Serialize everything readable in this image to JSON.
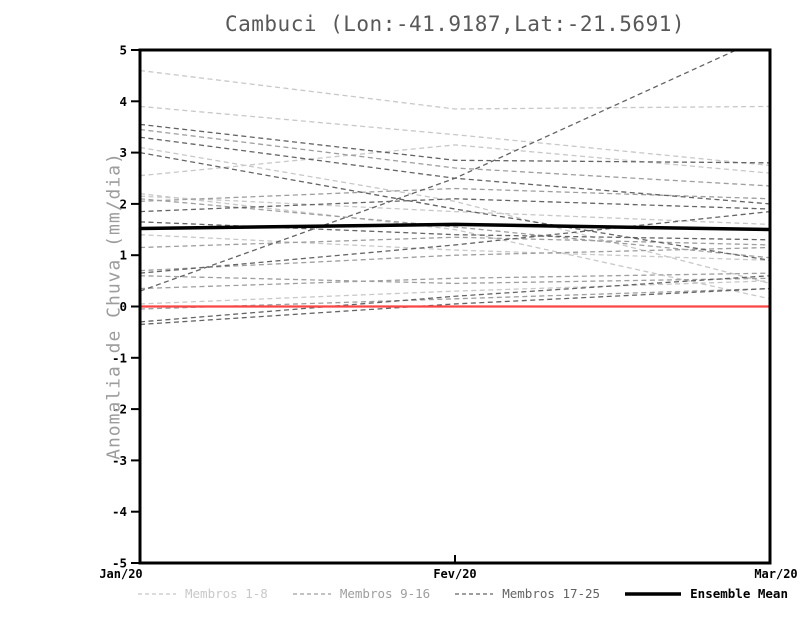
{
  "chart_data": {
    "type": "line",
    "title": "Cambuci (Lon:-41.9187,Lat:-21.5691)",
    "ylabel": "Anomalia de Chuva (mm/dia)",
    "xlabel": "",
    "x_categories": [
      "Jan/20",
      "Fev/20",
      "Mar/20"
    ],
    "ylim": [
      -5,
      5
    ],
    "yticks": [
      5,
      4,
      3,
      2,
      1,
      0,
      -1,
      -2,
      -3,
      -4,
      -5
    ],
    "grid": false,
    "legend_position": "bottom",
    "groups": [
      {
        "label": "Membros 1-8",
        "color": "#c8c8c8",
        "style": "dashed",
        "members": [
          [
            4.6,
            3.85,
            3.9
          ],
          [
            3.9,
            3.35,
            2.75
          ],
          [
            2.55,
            3.15,
            2.6
          ],
          [
            3.1,
            2.05,
            0.45
          ],
          [
            2.15,
            1.85,
            1.6
          ],
          [
            1.4,
            1.1,
            0.9
          ],
          [
            0.05,
            0.3,
            0.5
          ],
          [
            2.2,
            1.5,
            0.15
          ]
        ]
      },
      {
        "label": "Membros 9-16",
        "color": "#9e9e9e",
        "style": "dashed",
        "members": [
          [
            3.45,
            2.7,
            2.35
          ],
          [
            2.05,
            2.3,
            2.1
          ],
          [
            1.15,
            1.35,
            1.2
          ],
          [
            0.7,
            1.0,
            1.15
          ],
          [
            -0.05,
            0.15,
            0.35
          ],
          [
            0.6,
            0.45,
            0.55
          ],
          [
            2.1,
            1.55,
            0.95
          ],
          [
            0.35,
            0.55,
            0.65
          ]
        ]
      },
      {
        "label": "Membros 17-25",
        "color": "#646464",
        "style": "dashed",
        "members": [
          [
            3.55,
            2.85,
            2.8
          ],
          [
            3.3,
            2.5,
            2.0
          ],
          [
            3.0,
            1.9,
            0.9
          ],
          [
            1.85,
            2.1,
            1.9
          ],
          [
            1.65,
            1.4,
            1.3
          ],
          [
            0.65,
            1.2,
            1.85
          ],
          [
            0.3,
            2.5,
            5.3
          ],
          [
            -0.3,
            0.2,
            0.6
          ],
          [
            -0.35,
            0.05,
            0.35
          ]
        ]
      }
    ],
    "ensemble_mean": {
      "label": "Ensemble Mean",
      "color": "#000000",
      "style": "solid",
      "values": [
        1.52,
        1.6,
        1.5
      ]
    },
    "zero_line": {
      "y": 0,
      "color": "#fb4545"
    }
  }
}
